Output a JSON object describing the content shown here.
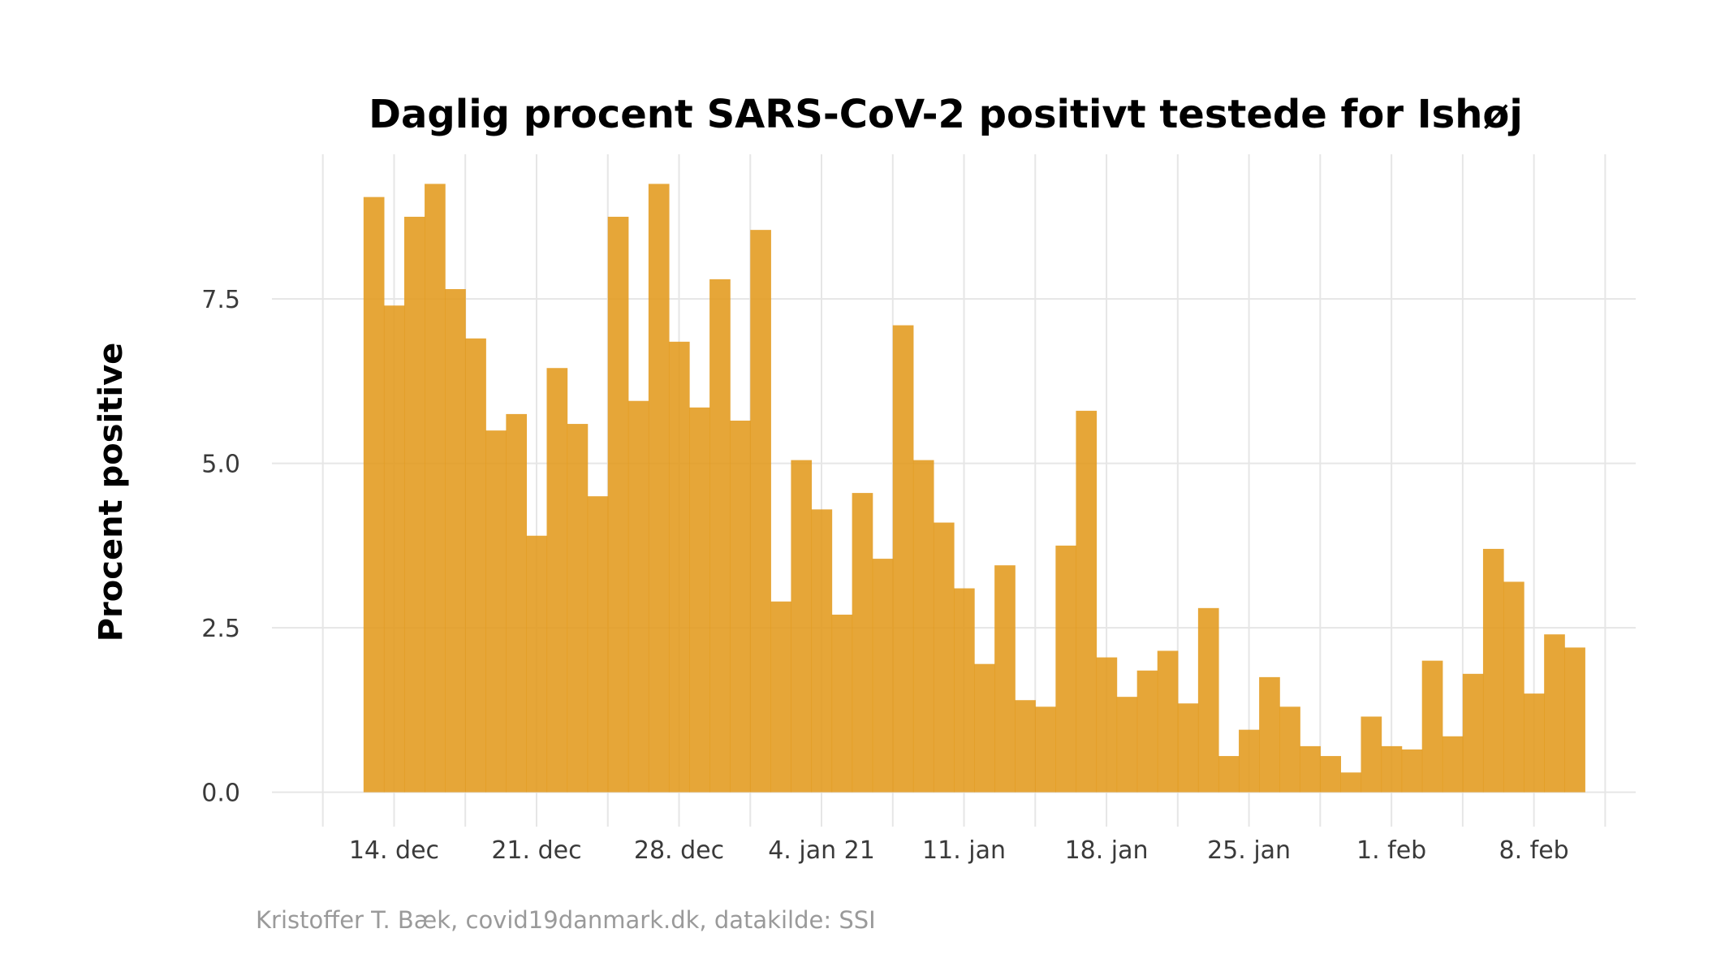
{
  "chart_data": {
    "type": "bar",
    "title": "Daglig procent SARS-CoV-2 positivt testede for Ishøj",
    "xlabel": "",
    "ylabel": "Procent positive",
    "caption": "Kristoffer T. Bæk, covid19danmark.dk, datakilde: SSI",
    "bar_color": "#e29a1c",
    "grid_color": "#e6e6e6",
    "grid": true,
    "legend": "none",
    "start_date": "2020-12-13",
    "x_range": [
      "2020-12-08",
      "2021-02-13"
    ],
    "ylim": [
      -0.4,
      9.7
    ],
    "x_ticks": [
      {
        "label": "14. dec",
        "date": "2020-12-14"
      },
      {
        "label": "21. dec",
        "date": "2020-12-21"
      },
      {
        "label": "28. dec",
        "date": "2020-12-28"
      },
      {
        "label": "4. jan 21",
        "date": "2021-01-04"
      },
      {
        "label": "11. jan",
        "date": "2021-01-11"
      },
      {
        "label": "18. jan",
        "date": "2021-01-18"
      },
      {
        "label": "25. jan",
        "date": "2021-01-25"
      },
      {
        "label": "1. feb",
        "date": "2021-02-01"
      },
      {
        "label": "8. feb",
        "date": "2021-02-08"
      }
    ],
    "y_ticks": [
      {
        "label": "0.0",
        "value": 0
      },
      {
        "label": "2.5",
        "value": 2.5
      },
      {
        "label": "5.0",
        "value": 5.0
      },
      {
        "label": "7.5",
        "value": 7.5
      }
    ],
    "values": [
      9.05,
      7.4,
      8.75,
      9.25,
      7.65,
      6.9,
      5.5,
      5.75,
      3.9,
      6.45,
      5.6,
      4.5,
      8.75,
      5.95,
      9.25,
      6.85,
      5.85,
      7.8,
      5.65,
      8.55,
      2.9,
      5.05,
      4.3,
      2.7,
      4.55,
      3.55,
      7.1,
      5.05,
      4.1,
      3.1,
      1.95,
      3.45,
      1.4,
      1.3,
      3.75,
      5.8,
      2.05,
      1.45,
      1.85,
      2.15,
      1.35,
      2.8,
      0.55,
      0.95,
      1.75,
      1.3,
      0.7,
      0.55,
      0.3,
      1.15,
      0.7,
      0.65,
      2.0,
      0.85,
      1.8,
      3.7,
      3.2,
      1.5,
      2.4,
      2.2
    ]
  }
}
